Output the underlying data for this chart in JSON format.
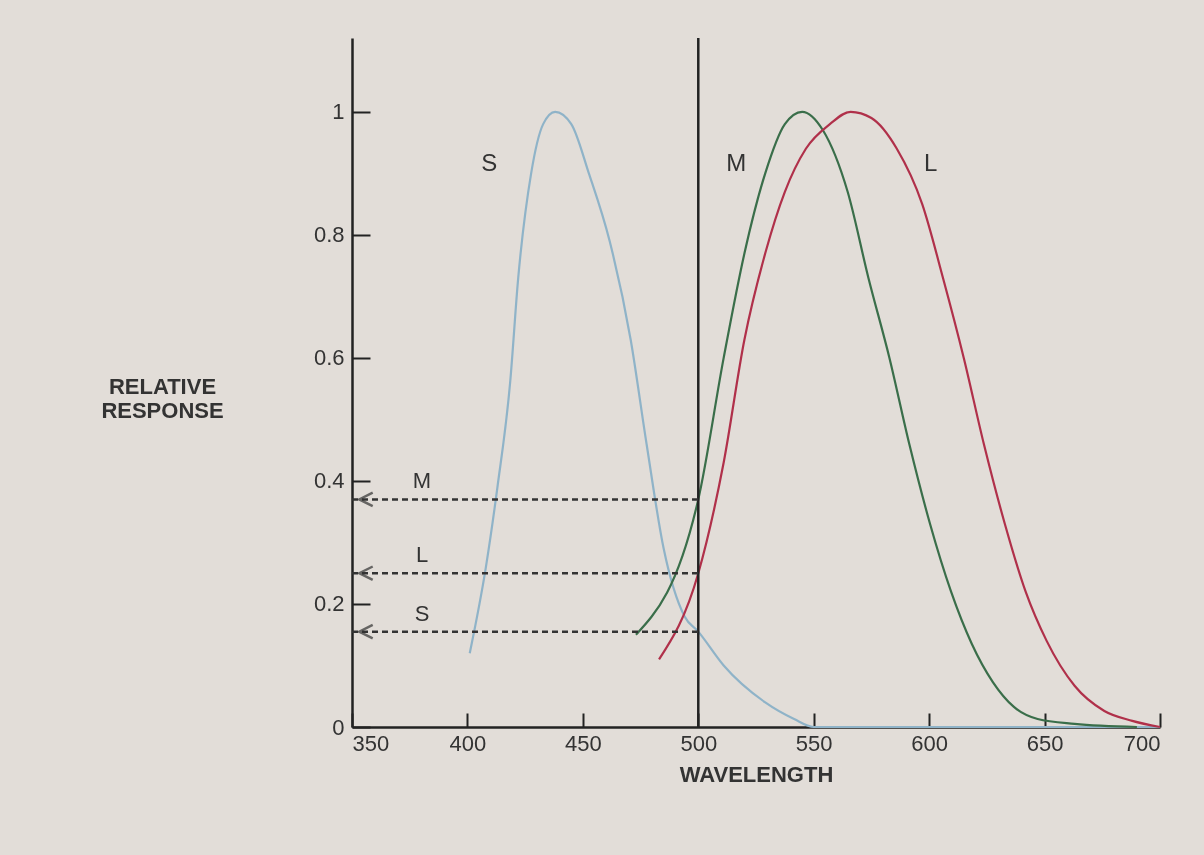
{
  "chart_data": {
    "type": "line",
    "xlabel": "WAVELENGTH",
    "ylabel": "RELATIVE RESPONSE",
    "xlim": [
      350,
      700
    ],
    "ylim": [
      0,
      1.12
    ],
    "xticks": [
      350,
      400,
      450,
      500,
      550,
      600,
      650,
      700
    ],
    "yticks": [
      0,
      0.2,
      0.4,
      0.6,
      0.8,
      1
    ],
    "legend": false,
    "marker": "none",
    "line_style": "solid",
    "series": [
      {
        "name": "S",
        "color": "#8fb3c8",
        "x": [
          401,
          408,
          413,
          418.5,
          422,
          427.6,
          432.8,
          438,
          445,
          452.6,
          461.6,
          470.7,
          477.6,
          485,
          494,
          500,
          511,
          529,
          541.5,
          550,
          600,
          650,
          700
        ],
        "values": [
          0.12,
          0.26,
          0.39,
          0.56,
          0.73,
          0.9,
          0.98,
          1,
          0.98,
          0.9,
          0.79,
          0.63,
          0.46,
          0.29,
          0.18,
          0.155,
          0.1,
          0.04,
          0.013,
          0,
          0,
          0,
          0
        ]
      },
      {
        "name": "M",
        "color": "#3a6e4a",
        "x": [
          473,
          500,
          511,
          520,
          529,
          537.5,
          545,
          554,
          564.7,
          573.7,
          582.8,
          591.4,
          600.4,
          609.5,
          618.5,
          627.6,
          636.6,
          647,
          663,
          690
        ],
        "values": [
          0.15,
          0.37,
          0.6,
          0.77,
          0.9,
          0.98,
          1,
          0.97,
          0.87,
          0.73,
          0.6,
          0.46,
          0.33,
          0.22,
          0.135,
          0.073,
          0.033,
          0.013,
          0.005,
          0
        ]
      },
      {
        "name": "L",
        "color": "#b0304a",
        "x": [
          483,
          500,
          511,
          520,
          529,
          537.5,
          546.6,
          557,
          566,
          575,
          586,
          597,
          606,
          615,
          623.7,
          632.8,
          641.8,
          650.9,
          663,
          675.9,
          688,
          700
        ],
        "values": [
          0.11,
          0.25,
          0.43,
          0.63,
          0.77,
          0.87,
          0.94,
          0.98,
          1,
          0.99,
          0.94,
          0.85,
          0.73,
          0.6,
          0.46,
          0.33,
          0.22,
          0.14,
          0.067,
          0.026,
          0.01,
          0
        ]
      }
    ],
    "ref_lines": [
      {
        "axis": "x",
        "value": 500,
        "color": "#222222"
      },
      {
        "axis": "y",
        "value": 0.37,
        "label": "M",
        "line_style": "dashed",
        "color": "#333333"
      },
      {
        "axis": "y",
        "value": 0.25,
        "label": "L",
        "line_style": "dashed",
        "color": "#333333"
      },
      {
        "axis": "y",
        "value": 0.155,
        "label": "S",
        "line_style": "dashed",
        "color": "#333333"
      }
    ]
  }
}
